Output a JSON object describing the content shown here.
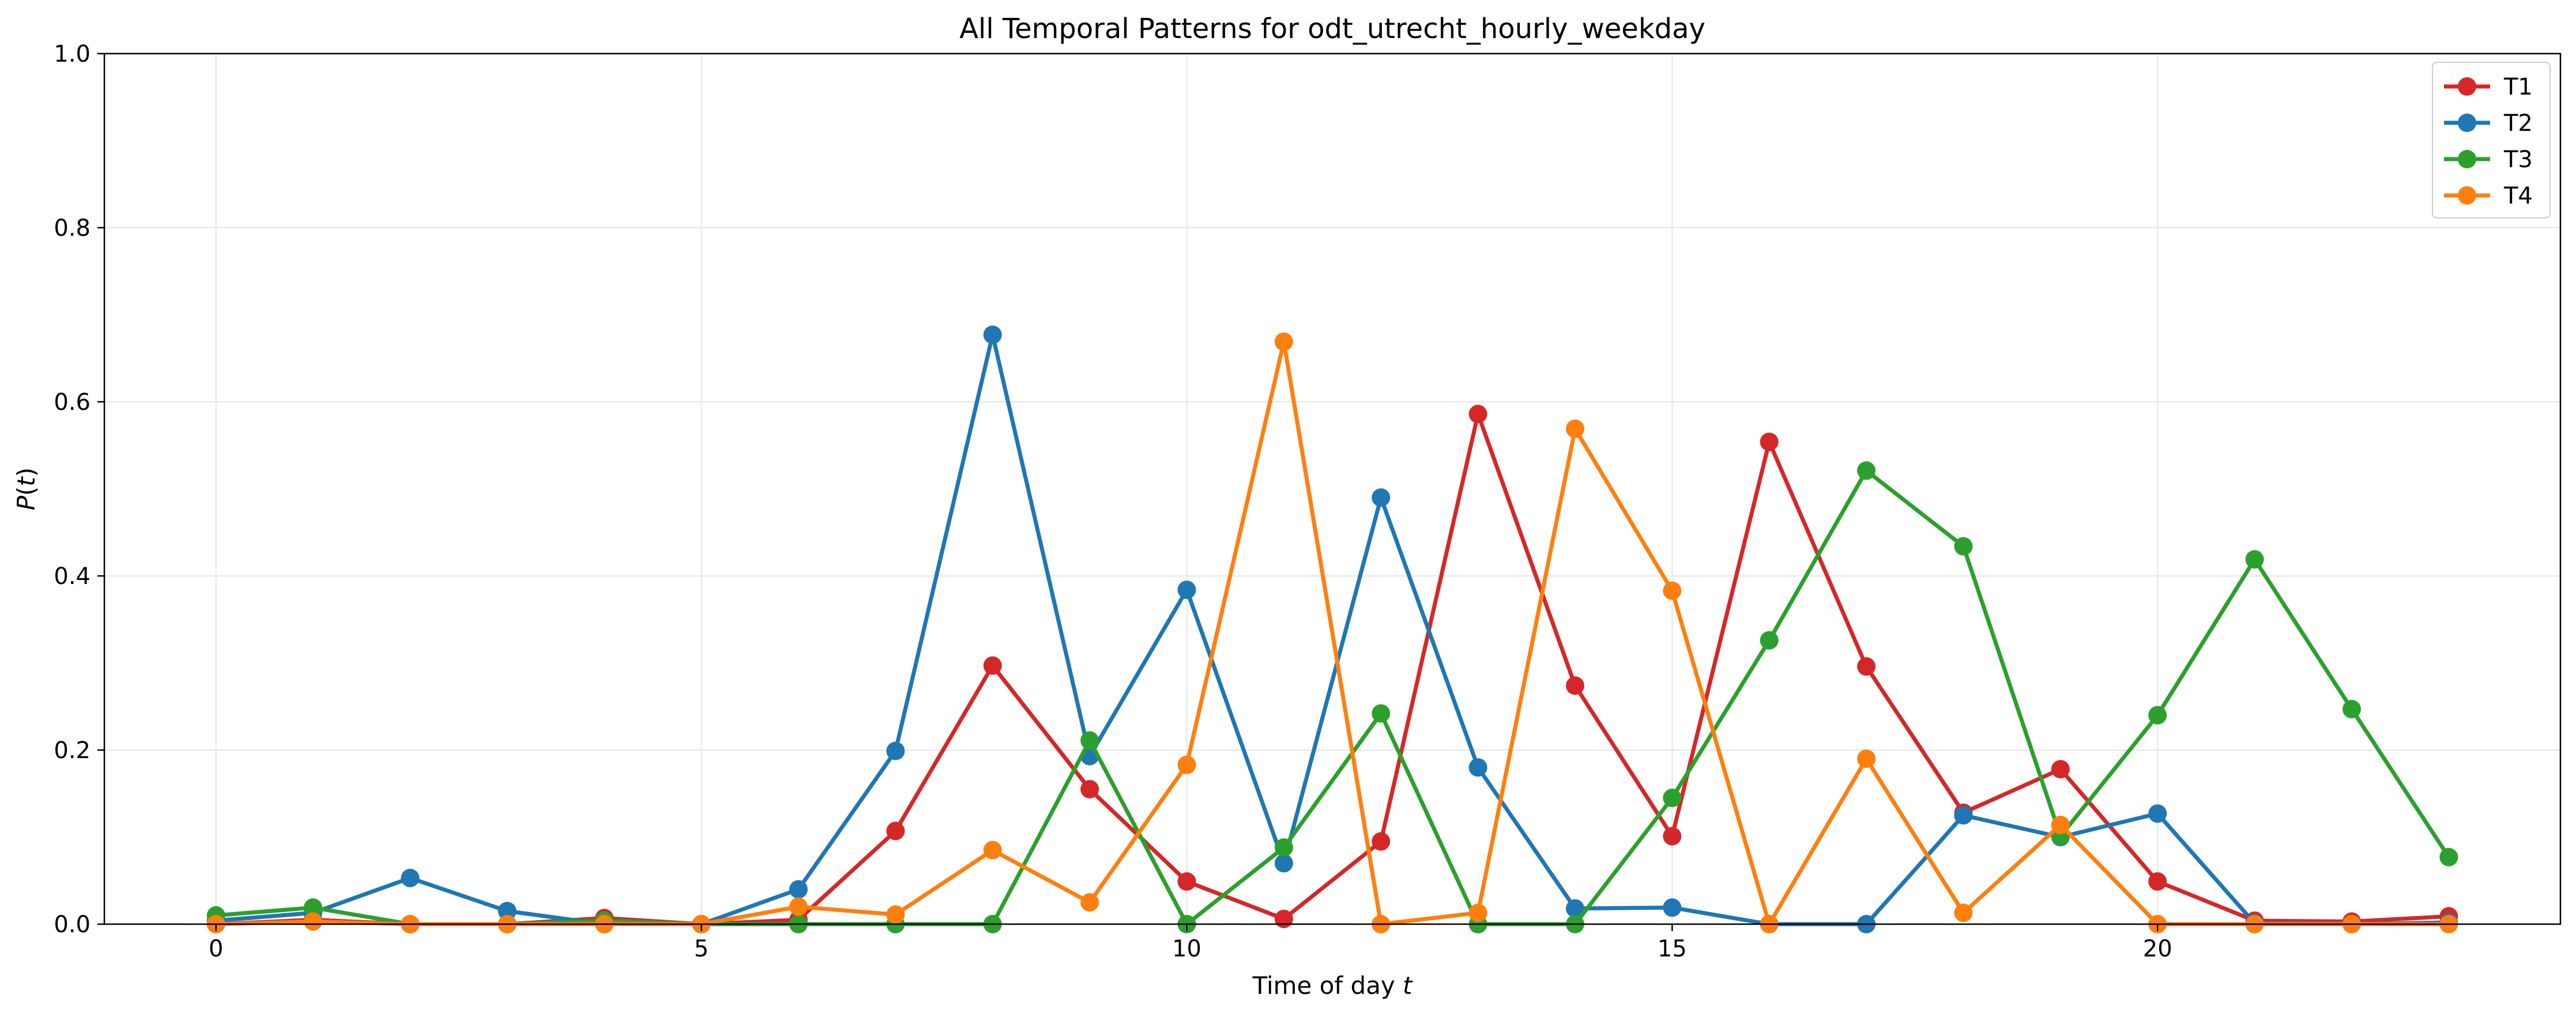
{
  "chart_data": {
    "type": "line",
    "title": "All Temporal Patterns for odt_utrecht_hourly_weekday",
    "xlabel": "Time of day t",
    "ylabel": "P(t)",
    "xlim": [
      -1.15,
      24.15
    ],
    "ylim": [
      0,
      1.0
    ],
    "xticks": [
      0,
      5,
      10,
      15,
      20
    ],
    "yticks": [
      0.0,
      0.2,
      0.4,
      0.6,
      0.8,
      1.0
    ],
    "ytick_labels": [
      "0.0",
      "0.2",
      "0.4",
      "0.6",
      "0.8",
      "1.0"
    ],
    "grid": true,
    "legend_position": "top-right",
    "x": [
      0,
      1,
      2,
      3,
      4,
      5,
      6,
      7,
      8,
      9,
      10,
      11,
      12,
      13,
      14,
      15,
      16,
      17,
      18,
      19,
      20,
      21,
      22,
      23
    ],
    "series": [
      {
        "name": "T1",
        "color": "#d62728",
        "values": [
          0.0,
          0.005,
          0.0,
          0.0,
          0.007,
          0.0,
          0.005,
          0.107,
          0.297,
          0.155,
          0.049,
          0.006,
          0.095,
          0.586,
          0.274,
          0.101,
          0.554,
          0.296,
          0.128,
          0.178,
          0.049,
          0.004,
          0.003,
          0.009
        ]
      },
      {
        "name": "T2",
        "color": "#1f77b4",
        "values": [
          0.004,
          0.013,
          0.053,
          0.015,
          0.0,
          0.0,
          0.04,
          0.199,
          0.677,
          0.193,
          0.384,
          0.07,
          0.49,
          0.18,
          0.018,
          0.019,
          0.0,
          0.0,
          0.125,
          0.1,
          0.127,
          0.001,
          0.0,
          0.002
        ]
      },
      {
        "name": "T3",
        "color": "#2ca02c",
        "values": [
          0.01,
          0.019,
          0.0,
          0.0,
          0.004,
          0.0,
          0.0,
          0.0,
          0.0,
          0.211,
          0.0,
          0.088,
          0.242,
          0.0,
          0.0,
          0.145,
          0.326,
          0.521,
          0.434,
          0.101,
          0.24,
          0.419,
          0.247,
          0.077
        ]
      },
      {
        "name": "T4",
        "color": "#ff7f0e",
        "values": [
          0.0,
          0.003,
          0.0,
          0.0,
          0.0,
          0.0,
          0.02,
          0.011,
          0.085,
          0.025,
          0.183,
          0.669,
          0.0,
          0.013,
          0.569,
          0.383,
          0.0,
          0.19,
          0.013,
          0.114,
          0.0,
          0.0,
          0.0,
          0.0
        ]
      }
    ]
  }
}
